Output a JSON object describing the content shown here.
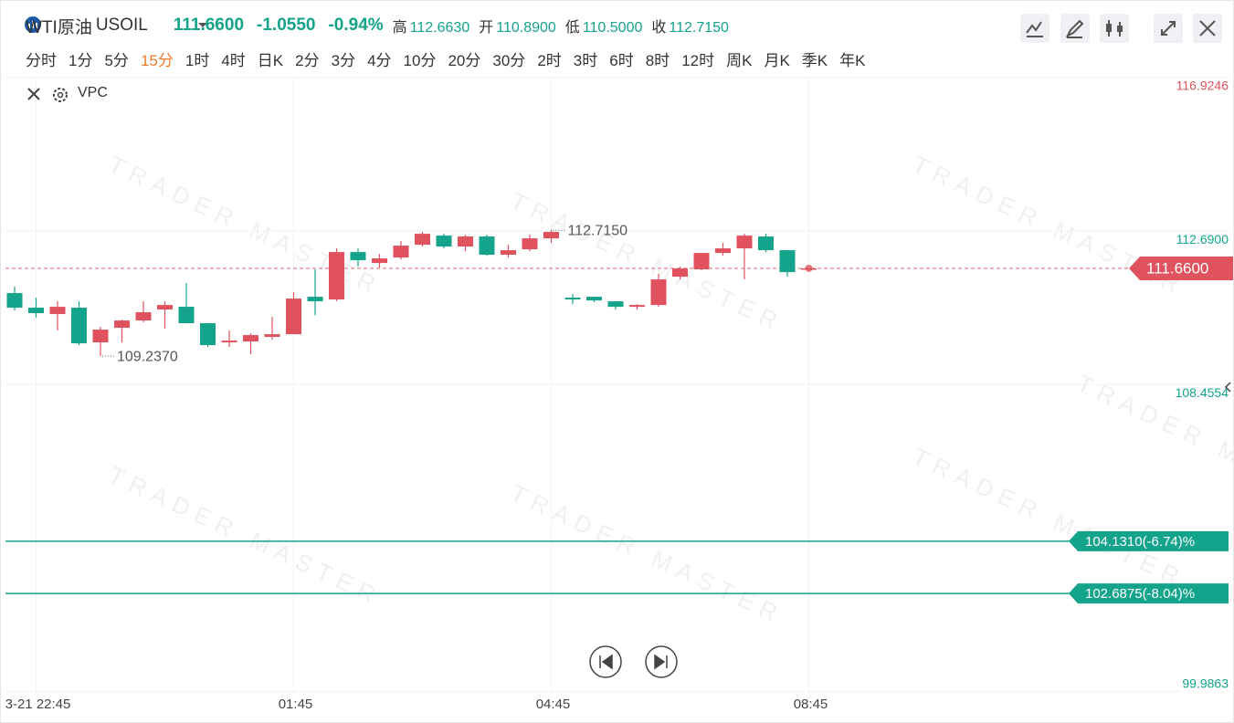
{
  "header": {
    "name": "WTI原油",
    "symbol": "USOIL",
    "price": "111.6600",
    "change": "-1.0550",
    "change_pct": "-0.94%",
    "stats": [
      {
        "label": "高",
        "value": "112.6630"
      },
      {
        "label": "开",
        "value": "110.8900"
      },
      {
        "label": "低",
        "value": "110.5000"
      },
      {
        "label": "收",
        "value": "112.7150"
      }
    ]
  },
  "timeframes": [
    "分时",
    "1分",
    "5分",
    "15分",
    "1时",
    "4时",
    "日K",
    "2分",
    "3分",
    "4分",
    "10分",
    "20分",
    "30分",
    "2时",
    "3时",
    "6时",
    "8时",
    "12时",
    "周K",
    "月K",
    "季K",
    "年K"
  ],
  "active_timeframe_index": 3,
  "indicator": "VPC",
  "chart_data": {
    "type": "candlestick",
    "categories": [
      null,
      "3-21 22:45",
      null,
      null,
      null,
      null,
      null,
      null,
      null,
      null,
      null,
      null,
      null,
      "01:45",
      null,
      null,
      null,
      null,
      null,
      null,
      null,
      null,
      null,
      null,
      null,
      "04:45",
      null,
      null,
      null,
      null,
      null,
      null,
      null,
      null,
      null,
      null,
      null,
      "08:45"
    ],
    "open": [
      110.977,
      110.574,
      110.398,
      110.574,
      109.617,
      110.02,
      110.221,
      110.524,
      110.599,
      110.146,
      109.617,
      109.642,
      109.768,
      109.843,
      110.876,
      110.801,
      112.11,
      111.808,
      111.959,
      112.312,
      112.564,
      112.262,
      112.539,
      112.035,
      112.186,
      112.488,
      110.851,
      110.876,
      110.75,
      110.599,
      110.649,
      111.43,
      111.632,
      112.085,
      112.211,
      112.539,
      112.161,
      111.66
    ],
    "high": [
      111.153,
      110.851,
      110.75,
      110.75,
      110.045,
      110.246,
      110.75,
      110.75,
      111.254,
      110.146,
      109.944,
      109.869,
      110.322,
      111.002,
      111.632,
      112.211,
      112.211,
      112.06,
      112.413,
      112.665,
      112.614,
      112.589,
      112.589,
      112.312,
      112.589,
      112.715,
      110.952,
      110.876,
      110.75,
      110.675,
      111.506,
      111.707,
      112.085,
      112.362,
      112.614,
      112.614,
      112.161,
      111.66
    ],
    "low": [
      110.499,
      110.297,
      109.944,
      109.541,
      109.237,
      109.617,
      110.171,
      109.995,
      110.146,
      109.491,
      109.491,
      109.289,
      109.692,
      109.843,
      110.372,
      110.75,
      111.707,
      111.682,
      111.909,
      112.262,
      112.211,
      112.136,
      112.01,
      111.959,
      112.136,
      112.362,
      110.675,
      110.725,
      110.524,
      110.524,
      110.599,
      111.355,
      111.607,
      112.01,
      111.355,
      112.11,
      111.43,
      111.66
    ],
    "close": [
      110.574,
      110.423,
      110.599,
      109.591,
      109.969,
      110.221,
      110.448,
      110.649,
      110.146,
      109.541,
      109.667,
      109.818,
      109.843,
      110.826,
      110.75,
      112.11,
      111.884,
      111.934,
      112.287,
      112.614,
      112.262,
      112.539,
      112.035,
      112.161,
      112.488,
      112.665,
      110.801,
      110.775,
      110.599,
      110.649,
      111.355,
      111.657,
      112.085,
      112.211,
      112.564,
      112.161,
      111.556,
      111.66
    ],
    "up_color": "#e0525e",
    "down_color": "#14a38b",
    "ylim": [
      99.92,
      117.1
    ],
    "yticks": [
      {
        "value": 116.9246,
        "label": "116.9246"
      },
      {
        "value": 112.69,
        "label": "112.6900"
      },
      {
        "value": 108.4554,
        "label": "108.4554"
      },
      99.9863
    ],
    "grid": true,
    "last_price": {
      "value": 111.66,
      "label": "111.6600"
    },
    "levels": [
      {
        "value": 104.131,
        "label": "104.1310(-6.74)%"
      },
      {
        "value": 102.6875,
        "label": "102.6875(-8.04)%"
      }
    ],
    "annotations": [
      {
        "value": 112.715,
        "label": "112.7150"
      },
      {
        "value": 109.237,
        "label": "109.2370"
      }
    ],
    "watermark": "TRADER MASTER"
  }
}
